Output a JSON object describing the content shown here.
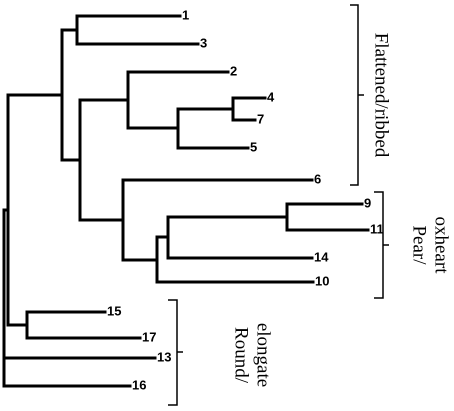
{
  "leaves": [
    {
      "label": "1"
    },
    {
      "label": "3"
    },
    {
      "label": "2"
    },
    {
      "label": "4"
    },
    {
      "label": "7"
    },
    {
      "label": "5"
    },
    {
      "label": "6"
    },
    {
      "label": "9"
    },
    {
      "label": "11"
    },
    {
      "label": "14"
    },
    {
      "label": "10"
    },
    {
      "label": "15"
    },
    {
      "label": "17"
    },
    {
      "label": "13"
    },
    {
      "label": "16"
    }
  ],
  "groups": [
    {
      "lines": [
        "Flattened/ribbed"
      ]
    },
    {
      "lines": [
        "Pear/",
        "oxheart"
      ]
    },
    {
      "lines": [
        "Round/",
        "elongate"
      ]
    }
  ]
}
